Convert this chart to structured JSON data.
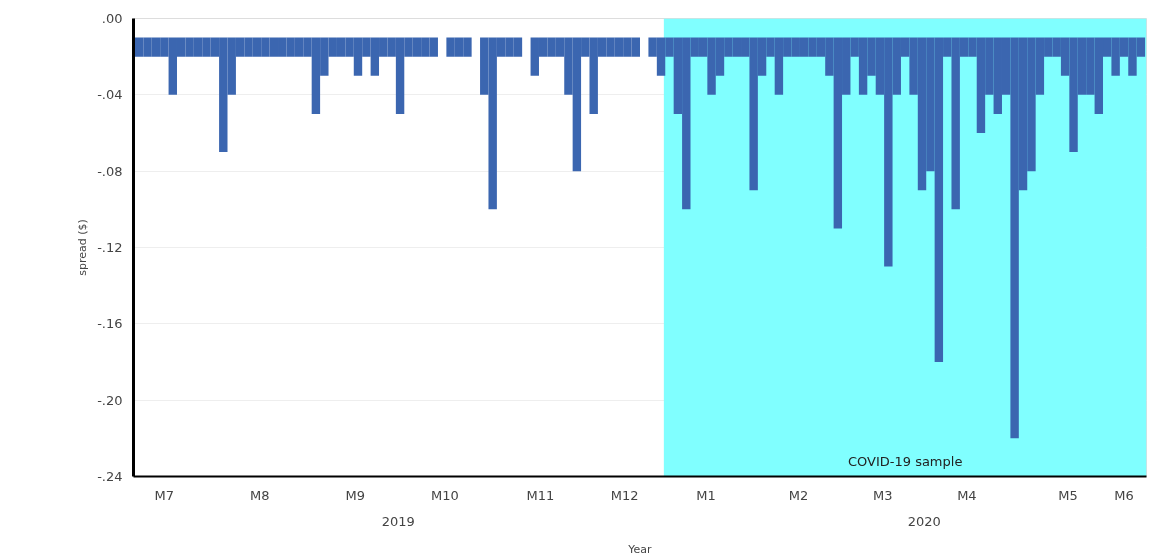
{
  "chart_data": {
    "type": "bar",
    "ylabel": "spread ($)",
    "xlabel": "Year",
    "x": [
      "2019-06-28",
      "2019-07-01",
      "2019-07-04",
      "2019-07-07",
      "2019-07-10",
      "2019-07-13",
      "2019-07-16",
      "2019-07-19",
      "2019-07-22",
      "2019-07-25",
      "2019-07-28",
      "2019-07-31",
      "2019-08-03",
      "2019-08-06",
      "2019-08-09",
      "2019-08-12",
      "2019-08-15",
      "2019-08-18",
      "2019-08-21",
      "2019-08-24",
      "2019-08-27",
      "2019-08-30",
      "2019-09-02",
      "2019-09-05",
      "2019-09-08",
      "2019-09-11",
      "2019-09-14",
      "2019-09-17",
      "2019-09-20",
      "2019-09-23",
      "2019-09-26",
      "2019-09-29",
      "2019-10-02",
      "2019-10-05",
      "2019-10-08",
      "2019-10-11",
      "2019-10-14",
      "2019-10-17",
      "2019-10-20",
      "2019-10-23",
      "2019-10-26",
      "2019-10-29",
      "2019-11-01",
      "2019-11-04",
      "2019-11-07",
      "2019-11-10",
      "2019-11-13",
      "2019-11-16",
      "2019-11-19",
      "2019-11-22",
      "2019-11-25",
      "2019-11-28",
      "2019-12-01",
      "2019-12-04",
      "2019-12-07",
      "2019-12-10",
      "2019-12-13",
      "2019-12-16",
      "2019-12-19",
      "2019-12-22",
      "2019-12-25",
      "2019-12-28",
      "2019-12-31",
      "2020-01-03",
      "2020-01-06",
      "2020-01-09",
      "2020-01-12",
      "2020-01-15",
      "2020-01-18",
      "2020-01-21",
      "2020-01-24",
      "2020-01-27",
      "2020-01-30",
      "2020-02-02",
      "2020-02-05",
      "2020-02-08",
      "2020-02-11",
      "2020-02-14",
      "2020-02-17",
      "2020-02-20",
      "2020-02-23",
      "2020-02-26",
      "2020-02-29",
      "2020-03-03",
      "2020-03-06",
      "2020-03-09",
      "2020-03-12",
      "2020-03-15",
      "2020-03-18",
      "2020-03-21",
      "2020-03-24",
      "2020-03-27",
      "2020-03-30",
      "2020-04-02",
      "2020-04-05",
      "2020-04-08",
      "2020-04-11",
      "2020-04-14",
      "2020-04-17",
      "2020-04-20",
      "2020-04-23",
      "2020-04-26",
      "2020-04-29",
      "2020-05-02",
      "2020-05-05",
      "2020-05-08",
      "2020-05-11",
      "2020-05-14",
      "2020-05-17",
      "2020-05-20",
      "2020-05-23",
      "2020-05-26",
      "2020-05-29",
      "2020-06-01",
      "2020-06-04",
      "2020-06-07",
      "2020-06-10",
      "2020-06-13",
      "2020-06-16",
      "2020-06-19"
    ],
    "values": [
      -0.01,
      -0.01,
      -0.01,
      -0.01,
      -0.03,
      -0.01,
      -0.01,
      -0.01,
      -0.01,
      -0.01,
      -0.06,
      -0.03,
      -0.01,
      -0.01,
      -0.01,
      -0.01,
      -0.01,
      -0.01,
      -0.01,
      -0.01,
      -0.01,
      -0.04,
      -0.02,
      -0.01,
      -0.01,
      -0.01,
      -0.02,
      -0.01,
      -0.02,
      -0.01,
      -0.01,
      -0.04,
      -0.01,
      -0.01,
      -0.01,
      -0.01,
      null,
      -0.01,
      -0.01,
      -0.01,
      null,
      -0.03,
      -0.09,
      -0.01,
      -0.01,
      -0.01,
      null,
      -0.02,
      -0.01,
      -0.01,
      -0.01,
      -0.03,
      -0.07,
      -0.01,
      -0.04,
      -0.01,
      -0.01,
      -0.01,
      -0.01,
      -0.01,
      null,
      -0.01,
      -0.02,
      -0.01,
      -0.04,
      -0.09,
      -0.01,
      -0.01,
      -0.03,
      -0.02,
      -0.01,
      -0.01,
      -0.01,
      -0.08,
      -0.02,
      -0.01,
      -0.03,
      -0.01,
      -0.01,
      -0.01,
      -0.01,
      -0.01,
      -0.02,
      -0.1,
      -0.03,
      -0.01,
      -0.03,
      -0.02,
      -0.03,
      -0.12,
      -0.03,
      -0.01,
      -0.03,
      -0.08,
      -0.07,
      -0.17,
      -0.01,
      -0.09,
      -0.01,
      -0.01,
      -0.05,
      -0.03,
      -0.04,
      -0.03,
      -0.21,
      -0.08,
      -0.07,
      -0.03,
      -0.01,
      -0.01,
      -0.02,
      -0.06,
      -0.03,
      -0.03,
      -0.04,
      -0.01,
      -0.02,
      -0.01,
      -0.02,
      -0.01
    ],
    "base": [
      -0.01,
      -0.01,
      -0.01,
      -0.01,
      -0.01,
      -0.01,
      -0.01,
      -0.01,
      -0.01,
      -0.01,
      -0.01,
      -0.01,
      -0.01,
      -0.01,
      -0.01,
      -0.01,
      -0.01,
      -0.01,
      -0.01,
      -0.01,
      -0.01,
      -0.01,
      -0.01,
      -0.01,
      -0.01,
      -0.01,
      -0.01,
      -0.01,
      -0.01,
      -0.01,
      -0.01,
      -0.01,
      -0.01,
      -0.01,
      -0.01,
      -0.01,
      null,
      -0.01,
      -0.01,
      -0.01,
      null,
      -0.01,
      -0.01,
      -0.01,
      -0.01,
      -0.01,
      null,
      -0.01,
      -0.01,
      -0.01,
      -0.01,
      -0.01,
      -0.01,
      -0.01,
      -0.01,
      -0.01,
      -0.01,
      -0.01,
      -0.01,
      -0.01,
      null,
      -0.01,
      -0.01,
      -0.01,
      -0.01,
      -0.01,
      -0.01,
      -0.01,
      -0.01,
      -0.01,
      -0.01,
      -0.01,
      -0.01,
      -0.01,
      -0.01,
      -0.01,
      -0.01,
      -0.01,
      -0.01,
      -0.01,
      -0.01,
      -0.01,
      -0.01,
      -0.01,
      -0.01,
      -0.01,
      -0.01,
      -0.01,
      -0.01,
      -0.01,
      -0.01,
      -0.01,
      -0.01,
      -0.01,
      -0.01,
      -0.01,
      -0.01,
      -0.01,
      -0.01,
      -0.01,
      -0.01,
      -0.01,
      -0.01,
      -0.01,
      -0.01,
      -0.01,
      -0.01,
      -0.01,
      -0.01,
      -0.01,
      -0.01,
      -0.01,
      -0.01,
      -0.01,
      -0.01,
      -0.01,
      -0.01,
      -0.01,
      -0.01,
      -0.01
    ],
    "color": "#3b66b0",
    "xlim": [
      "2019-06-26",
      "2020-06-21"
    ],
    "xticks": [
      {
        "value": "2019-07-07",
        "label": "M7"
      },
      {
        "value": "2019-08-10",
        "label": "M8"
      },
      {
        "value": "2019-09-13",
        "label": "M9"
      },
      {
        "value": "2019-10-15",
        "label": "M10"
      },
      {
        "value": "2019-11-18",
        "label": "M11"
      },
      {
        "value": "2019-12-18",
        "label": "M12"
      },
      {
        "value": "2020-01-16",
        "label": "M1"
      },
      {
        "value": "2020-02-18",
        "label": "M2"
      },
      {
        "value": "2020-03-19",
        "label": "M3"
      },
      {
        "value": "2020-04-18",
        "label": "M4"
      },
      {
        "value": "2020-05-24",
        "label": "M5"
      },
      {
        "value": "2020-06-13",
        "label": "M6"
      }
    ],
    "ylim": [
      -0.24,
      0
    ],
    "yticks": [
      {
        "value": 0,
        "label": ".00"
      },
      {
        "value": -0.04,
        "label": "-.04"
      },
      {
        "value": -0.08,
        "label": "-.08"
      },
      {
        "value": -0.12,
        "label": "-.12"
      },
      {
        "value": -0.16,
        "label": "-.16"
      },
      {
        "value": -0.2,
        "label": "-.20"
      },
      {
        "value": -0.24,
        "label": "-.24"
      }
    ],
    "annotations": [
      "2019",
      "2020"
    ],
    "bands": [
      {
        "axis": "x",
        "from": "2020-01-01",
        "to": "2020-06-21",
        "label": "COVID-19 sample",
        "color": "#80ffff"
      }
    ],
    "grid": "y"
  }
}
